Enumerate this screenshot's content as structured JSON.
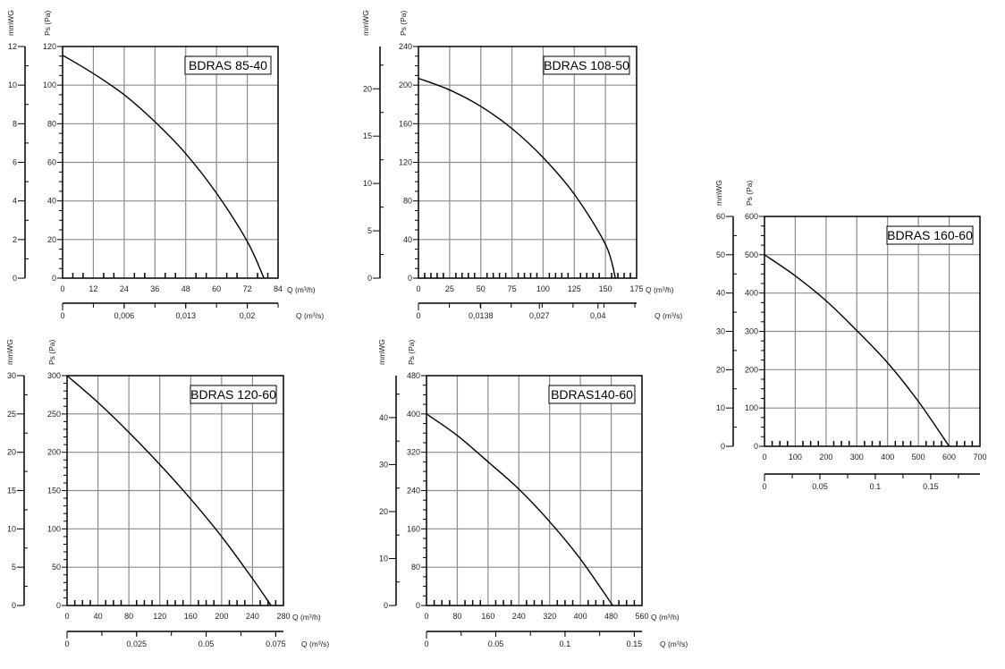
{
  "chart_data": [
    {
      "type": "line",
      "title": "BDRAS 85-40",
      "ylabel": "Ps (Pa)",
      "y2label": "mmWG",
      "xlabel": "Q (m³/h)",
      "x2label": "Q (m³/s)",
      "xlim": [
        0,
        84
      ],
      "ylim": [
        0,
        120
      ],
      "grid": true,
      "x_ticks": [
        "0",
        "12",
        "24",
        "36",
        "48",
        "60",
        "72",
        "84"
      ],
      "y_ticks": [
        "0",
        "20",
        "40",
        "60",
        "80",
        "100",
        "120"
      ],
      "y2_ticks": [
        "0",
        "2",
        "4",
        "6",
        "8",
        "10",
        "12"
      ],
      "x2_ticks": [
        "0",
        "0,006",
        "0,013",
        "0,02"
      ],
      "x2_tick_values_m3h": [
        0,
        24,
        48,
        72
      ],
      "curve": {
        "x": [
          0,
          12,
          24,
          36,
          48,
          60,
          72,
          78.5
        ],
        "y": [
          115.5,
          106,
          95,
          81,
          64.5,
          44,
          19,
          0
        ]
      }
    },
    {
      "type": "line",
      "title": "BDRAS 108-50",
      "ylabel": "Ps (Pa)",
      "y2label": "mmWG",
      "xlabel": "Q (m³/h)",
      "x2label": "Q (m³/s)",
      "xlim": [
        0,
        175
      ],
      "ylim": [
        0,
        240
      ],
      "grid": true,
      "x_ticks": [
        "0",
        "25",
        "50",
        "75",
        "100",
        "125",
        "150",
        "175"
      ],
      "y_ticks": [
        "0",
        "40",
        "80",
        "120",
        "160",
        "200",
        "240"
      ],
      "y2_ticks": [
        "0",
        "5",
        "10",
        "15",
        "20"
      ],
      "x2_ticks": [
        "0",
        "0,0138",
        "0,027",
        "0,04"
      ],
      "x2_tick_values_m3h": [
        0,
        50,
        97,
        144
      ],
      "curve": {
        "x": [
          0,
          25,
          50,
          75,
          100,
          125,
          150,
          158
        ],
        "y": [
          207,
          195,
          178,
          155,
          125,
          87,
          35,
          0
        ]
      }
    },
    {
      "type": "line",
      "title": "BDRAS 160-60",
      "ylabel": "Ps (Pa)",
      "y2label": "mmWG",
      "xlabel": "",
      "x2label": "",
      "xlim": [
        0,
        700
      ],
      "ylim": [
        0,
        600
      ],
      "grid": true,
      "x_ticks": [
        "0",
        "100",
        "200",
        "300",
        "400",
        "500",
        "600",
        "700"
      ],
      "y_ticks": [
        "0",
        "100",
        "200",
        "300",
        "400",
        "500",
        "600"
      ],
      "y2_ticks": [
        "0",
        "10",
        "20",
        "30",
        "40",
        "50",
        "60"
      ],
      "x2_ticks": [
        "0",
        "0.05",
        "0.1",
        "0.15"
      ],
      "x2_tick_values_m3h": [
        0,
        180,
        360,
        540
      ],
      "curve": {
        "x": [
          0,
          100,
          200,
          300,
          400,
          500,
          600
        ],
        "y": [
          500,
          445,
          380,
          302,
          218,
          117,
          0
        ]
      }
    },
    {
      "type": "line",
      "title": "BDRAS 120-60",
      "ylabel": "Ps (Pa)",
      "y2label": "mmWG",
      "xlabel": "Q (m³/h)",
      "x2label": "Q (m³/s)",
      "xlim": [
        0,
        280
      ],
      "ylim": [
        0,
        300
      ],
      "grid": true,
      "x_ticks": [
        "0",
        "40",
        "80",
        "120",
        "160",
        "200",
        "240",
        "280"
      ],
      "y_ticks": [
        "0",
        "50",
        "100",
        "150",
        "200",
        "250",
        "300"
      ],
      "y2_ticks": [
        "0",
        "5",
        "10",
        "15",
        "20",
        "25",
        "30"
      ],
      "x2_ticks": [
        "0",
        "0.025",
        "0.05",
        "0.075"
      ],
      "x2_tick_values_m3h": [
        0,
        90,
        180,
        270
      ],
      "curve": {
        "x": [
          0,
          40,
          80,
          120,
          160,
          200,
          240,
          264
        ],
        "y": [
          300,
          265,
          226,
          184,
          139,
          90,
          35,
          0
        ]
      }
    },
    {
      "type": "line",
      "title": "BDRAS140-60",
      "ylabel": "Ps (Pa)",
      "y2label": "mmWG",
      "xlabel": "Q (m³/h)",
      "x2label": "Q (m³/s)",
      "xlim": [
        0,
        560
      ],
      "ylim": [
        0,
        480
      ],
      "grid": true,
      "x_ticks": [
        "0",
        "80",
        "160",
        "240",
        "320",
        "400",
        "480",
        "560"
      ],
      "y_ticks": [
        "0",
        "80",
        "160",
        "240",
        "320",
        "400",
        "480"
      ],
      "y2_ticks": [
        "0",
        "10",
        "20",
        "30",
        "40"
      ],
      "x2_ticks": [
        "0",
        "0.05",
        "0.1",
        "0.15"
      ],
      "x2_tick_values_m3h": [
        0,
        180,
        360,
        540
      ],
      "curve": {
        "x": [
          0,
          80,
          160,
          240,
          320,
          400,
          484
        ],
        "y": [
          400,
          355,
          300,
          243,
          175,
          97,
          0
        ]
      }
    }
  ],
  "colors": {
    "curve": "#000000",
    "grid": "#8c8c8c",
    "frame": "#000000"
  }
}
